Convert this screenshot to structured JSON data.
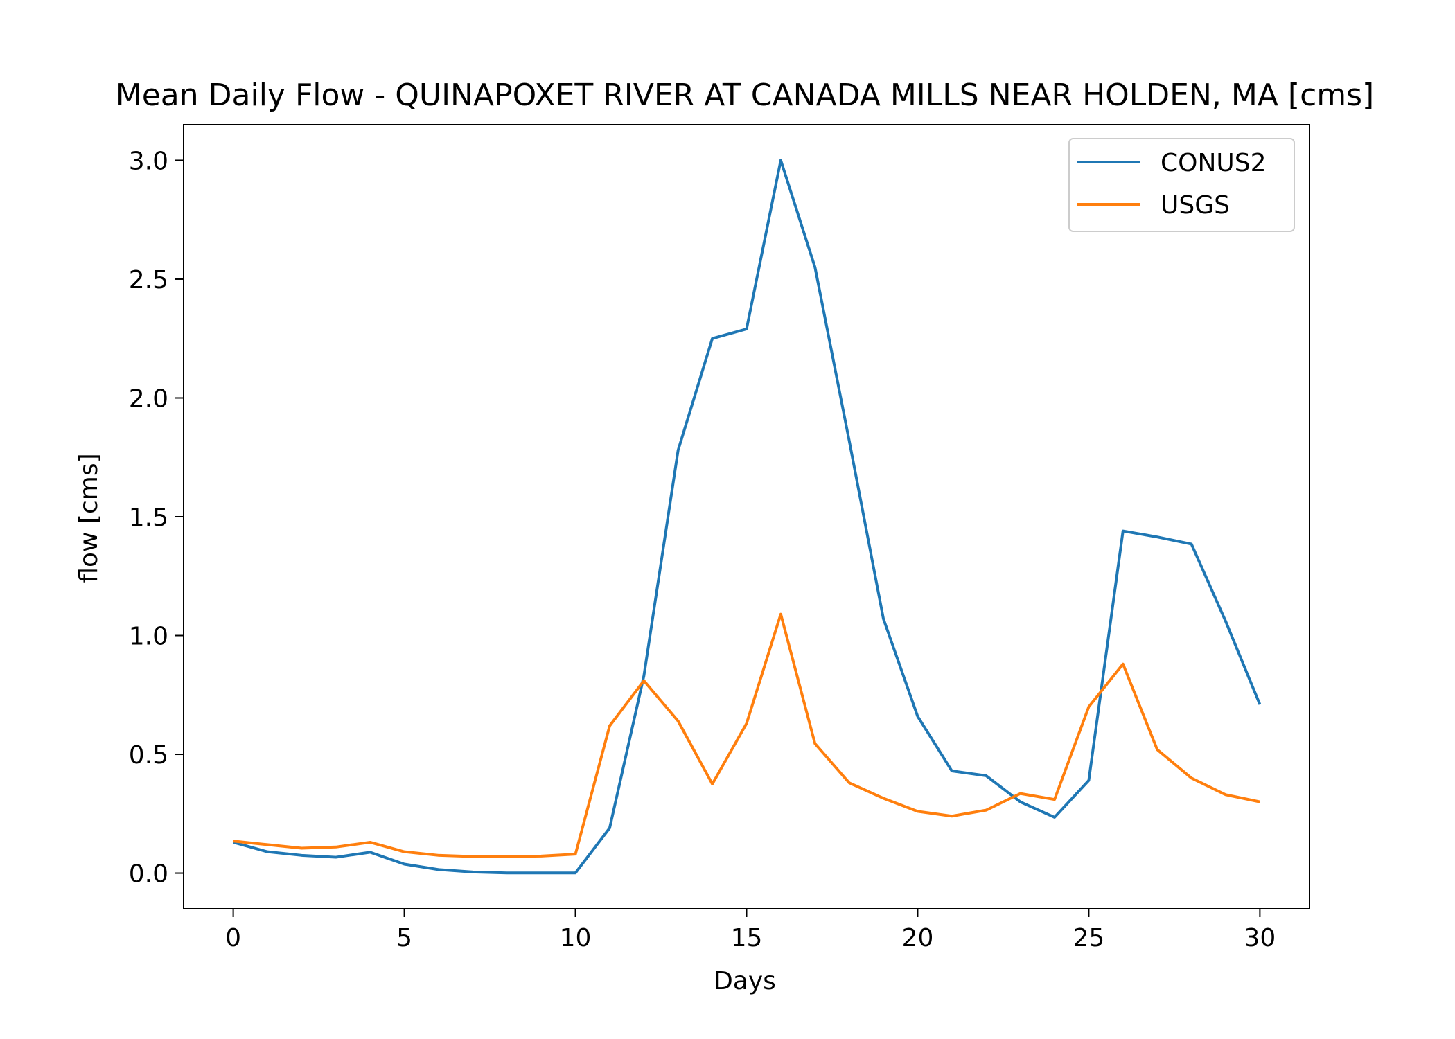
{
  "chart_data": {
    "type": "line",
    "title": "Mean Daily Flow - QUINAPOXET RIVER AT CANADA MILLS NEAR HOLDEN, MA [cms]",
    "xlabel": "Days",
    "ylabel": "flow [cms]",
    "xlim": [
      -1.45,
      31.45
    ],
    "ylim": [
      -0.15,
      3.15
    ],
    "xticks": [
      0,
      5,
      10,
      15,
      20,
      25,
      30
    ],
    "xtick_labels": [
      "0",
      "5",
      "10",
      "15",
      "20",
      "25",
      "30"
    ],
    "yticks": [
      0.0,
      0.5,
      1.0,
      1.5,
      2.0,
      2.5,
      3.0
    ],
    "ytick_labels": [
      "0.0",
      "0.5",
      "1.0",
      "1.5",
      "2.0",
      "2.5",
      "3.0"
    ],
    "grid": false,
    "legend_position": "top-right",
    "x": [
      0,
      1,
      2,
      3,
      4,
      5,
      6,
      7,
      8,
      9,
      10,
      11,
      12,
      13,
      14,
      15,
      16,
      17,
      18,
      19,
      20,
      21,
      22,
      23,
      24,
      25,
      26,
      27,
      28,
      29,
      30
    ],
    "series": [
      {
        "name": "CONUS2",
        "color": "#1f77b4",
        "values": [
          0.13,
          0.09,
          0.075,
          0.067,
          0.088,
          0.038,
          0.015,
          0.005,
          0.001,
          0.001,
          0.001,
          0.19,
          0.83,
          1.78,
          2.25,
          2.29,
          3.0,
          2.55,
          1.82,
          1.07,
          0.66,
          0.43,
          0.41,
          0.3,
          0.235,
          0.39,
          1.44,
          1.415,
          1.385,
          1.06,
          0.71
        ]
      },
      {
        "name": "USGS",
        "color": "#ff7f0e",
        "values": [
          0.135,
          0.12,
          0.105,
          0.11,
          0.13,
          0.09,
          0.075,
          0.07,
          0.07,
          0.072,
          0.08,
          0.62,
          0.81,
          0.64,
          0.375,
          0.63,
          1.09,
          0.545,
          0.38,
          0.315,
          0.26,
          0.24,
          0.265,
          0.335,
          0.31,
          0.7,
          0.88,
          0.52,
          0.4,
          0.33,
          0.3
        ]
      }
    ]
  }
}
